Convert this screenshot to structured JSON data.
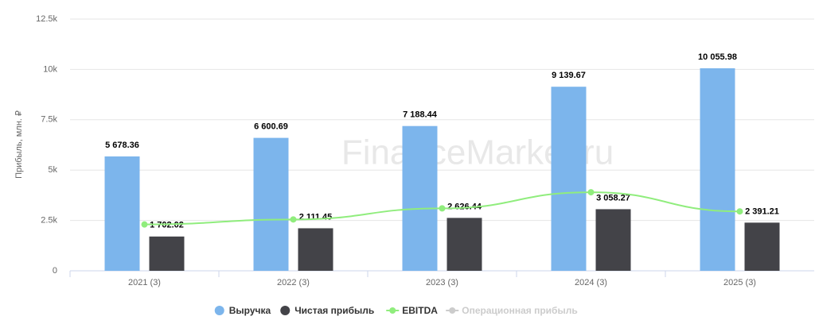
{
  "chart_data": {
    "type": "bar",
    "y_label": "Прибыль, млн. ₽",
    "watermark": "FinanceMarker.ru",
    "categories": [
      "2021 (3)",
      "2022 (3)",
      "2023 (3)",
      "2024 (3)",
      "2025 (3)"
    ],
    "series": [
      {
        "name": "Выручка",
        "type": "bar",
        "color": "#7cb5ec",
        "values": [
          5678.36,
          6600.69,
          7188.44,
          9139.67,
          10055.98
        ],
        "value_labels": [
          "5 678.36",
          "6 600.69",
          "7 188.44",
          "9 139.67",
          "10 055.98"
        ]
      },
      {
        "name": "Чистая прибыль",
        "type": "bar",
        "color": "#434348",
        "values": [
          1702.02,
          2111.45,
          2626.44,
          3058.27,
          2391.21
        ],
        "value_labels": [
          "1 702.02",
          "2 111.45",
          "2 626.44",
          "3 058.27",
          "2 391.21"
        ]
      },
      {
        "name": "EBITDA",
        "type": "line",
        "color": "#90ed7d",
        "values": [
          2300,
          2550,
          3100,
          3900,
          2950
        ]
      },
      {
        "name": "Операционная прибыль",
        "type": "line",
        "color": "#cccccc",
        "visible": false,
        "values": [
          null,
          null,
          null,
          null,
          null
        ]
      }
    ],
    "ylim": [
      0,
      12500
    ],
    "yticks": [
      0,
      {
        "value": 2500,
        "label": "2.5k"
      },
      {
        "value": 5000,
        "label": "5k"
      },
      {
        "value": 7500,
        "label": "7.5k"
      },
      {
        "value": 10000,
        "label": "10k"
      },
      {
        "value": 12500,
        "label": "12.5k"
      }
    ],
    "grid": true,
    "legend": "bottom"
  }
}
